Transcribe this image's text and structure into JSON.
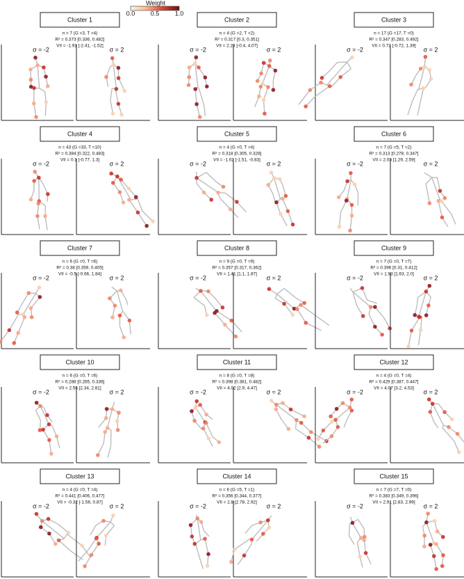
{
  "colorbar": {
    "label": "Weight",
    "ticks": [
      "0.0",
      "0.5",
      "1.0"
    ]
  },
  "sigma_labels": [
    "σ = -2",
    "σ = 2"
  ],
  "clusters": [
    {
      "title": "Cluster 1",
      "n": "n = 7 (G =3, T =4)",
      "r2": "R² = 0.373 [0.336, 0.482]",
      "vii": "VII = -1.91 [-2.41, -1.52]"
    },
    {
      "title": "Cluster 2",
      "n": "n = 4 (G =2, T =2)",
      "r2": "R² = 0.317 [0.3, 0.351]",
      "vii": "VII = 2.28 [-0.4, 4.07]"
    },
    {
      "title": "Cluster 3",
      "n": "n = 17 (G =17, T =0)",
      "r2": "R² = 0.347 [0.283, 0.492]",
      "vii": "VII = 0.72 [-0.72, 1.39]"
    },
    {
      "title": "Cluster 4",
      "n": "n = 43 (G =33, T =10)",
      "r2": "R² = 0.384 [0.322, 0.483]",
      "vii": "VII = 0.1 [-0.77, 1.3]"
    },
    {
      "title": "Cluster 5",
      "n": "n = 4 (G =0, T =4)",
      "r2": "R² = 0.318 [0.305, 0.328]",
      "vii": "VII = -1.02 [-1.51, -0.83]"
    },
    {
      "title": "Cluster 6",
      "n": "n = 7 (G =5, T =2)",
      "r2": "R² = 0.313 [0.278, 0.347]",
      "vii": "VII = 2.03 [1.29, 2.59]"
    },
    {
      "title": "Cluster 7",
      "n": "n = 6 (G =0, T =6)",
      "r2": "R² = 0.38 [0.359, 0.405]",
      "vii": "VII = -0.5 [-0.66, 1.84]"
    },
    {
      "title": "Cluster 8",
      "n": "n = 9 (G =0, T =9)",
      "r2": "R² = 0.357 [0.317, 0.362]",
      "vii": "VII = 1.41 [1.1, 1.87]"
    },
    {
      "title": "Cluster 9",
      "n": "n = 7 (G =0, T =7)",
      "r2": "R² = 0.396 [0.31, 0.412]",
      "vii": "VII = 1.93 [1.63, 2.0]"
    },
    {
      "title": "Cluster 10",
      "n": "n = 6 (G =0, T =6)",
      "r2": "R² = 0.288 [0.265, 0.336]",
      "vii": "VII = 2.55 [2.34, 2.81]"
    },
    {
      "title": "Cluster 11",
      "n": "n = 8 (G =0, T =8)",
      "r2": "R² = 0.398 [0.381, 0.482]",
      "vii": "VII = 4.02 [2.9, 4.47]"
    },
    {
      "title": "Cluster 12",
      "n": "n = 4 (G =0, T =4)",
      "r2": "R² = 0.429 [0.387, 0.447]",
      "vii": "VII = 4.07 [3.2, 4.53]"
    },
    {
      "title": "Cluster 13",
      "n": "n = 4 (G =0, T =4)",
      "r2": "R² = 0.441 [0.406, 0.477]",
      "vii": "VII = -0.32 [-1.56, 0.87]"
    },
    {
      "title": "Cluster 14",
      "n": "n = 6 (G =5, T =1)",
      "r2": "R² = 0.356 [0.344, 0.377]",
      "vii": "VII = 2.8 [2.78, 2.92]"
    },
    {
      "title": "Cluster 15",
      "n": "n = 7 (G =7, T =0)",
      "r2": "R² = 0.383 [0.349, 0.396]",
      "vii": "VII = 2.91 [2.83, 2.99]"
    }
  ]
}
